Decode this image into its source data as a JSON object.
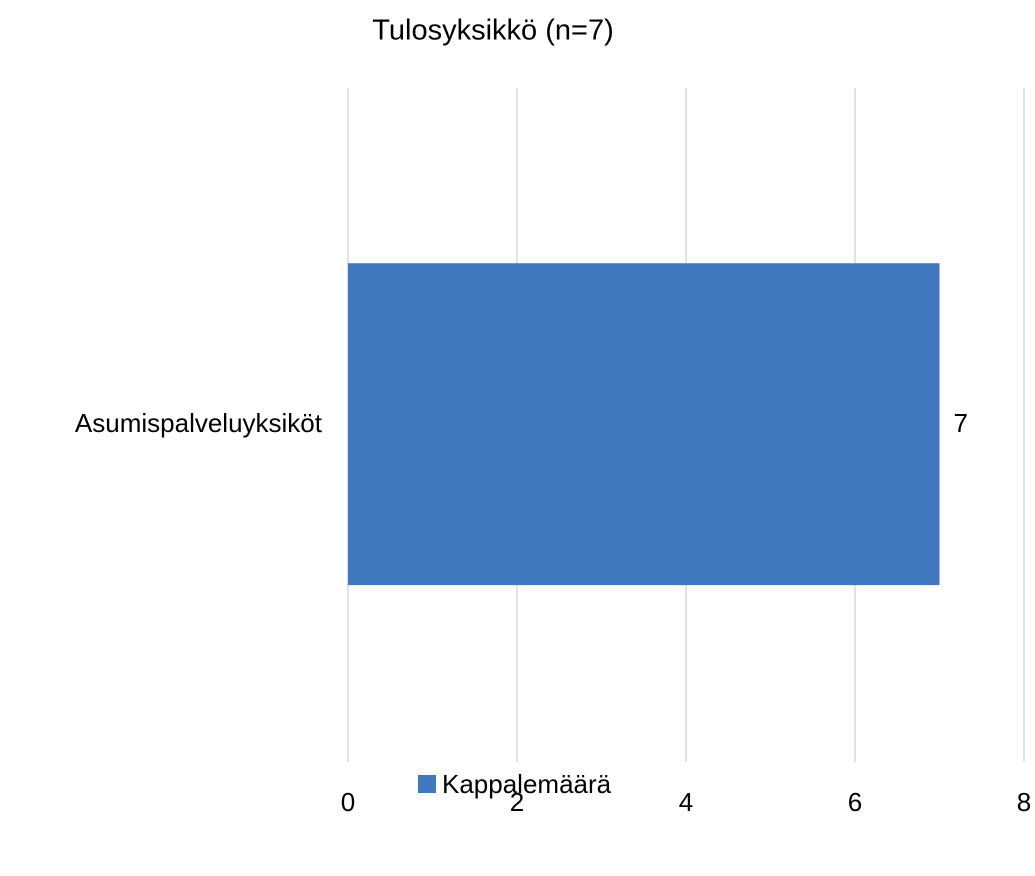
{
  "chart_data": {
    "type": "bar",
    "orientation": "horizontal",
    "title": "Tulosyksikkö (n=7)",
    "categories": [
      "Asumispalveluyksiköt"
    ],
    "series": [
      {
        "name": "Kappalemäärä",
        "color": "#3f78bd",
        "values": [
          7
        ]
      }
    ],
    "xlim": [
      0,
      8
    ],
    "xticks": [
      0,
      2,
      4,
      6,
      8
    ],
    "grid": true,
    "legend": "bottom",
    "data_labels": true
  }
}
